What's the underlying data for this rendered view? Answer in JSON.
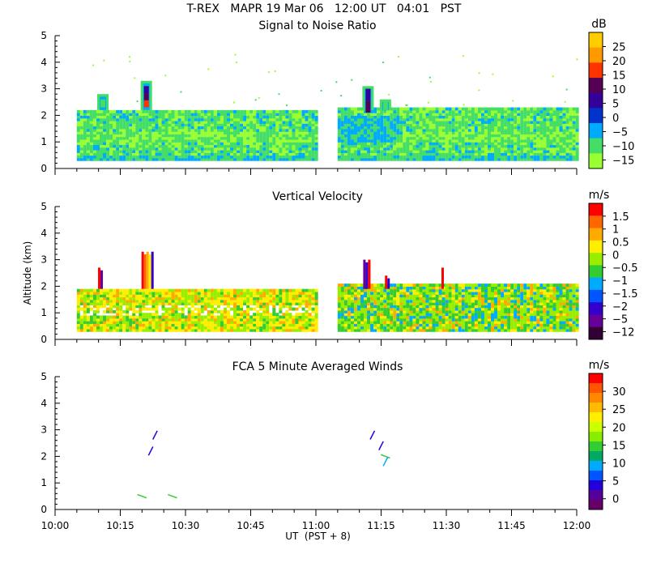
{
  "header": {
    "title": "T-REX   MAPR 19 Mar 06   12:00 UT   04:01   PST"
  },
  "x_axis": {
    "ticks": [
      "10:00",
      "10:15",
      "10:30",
      "10:45",
      "11:00",
      "11:15",
      "11:30",
      "11:45",
      "12:00"
    ],
    "label": "UT  (PST + 8)"
  },
  "y_axis": {
    "label": "Altitude (km)",
    "ticks": [
      "0",
      "1",
      "2",
      "3",
      "4",
      "5"
    ]
  },
  "panels": [
    {
      "title": "Signal to Noise Ratio",
      "unit": "dB",
      "colorbar": {
        "labels": [
          "25",
          "20",
          "15",
          "10",
          "5",
          "0",
          "−5",
          "−10",
          "−15"
        ],
        "colors": [
          "#ffcc00",
          "#ff9900",
          "#ff3300",
          "#550055",
          "#330099",
          "#0033cc",
          "#00aaff",
          "#44dd66",
          "#99ff33"
        ]
      }
    },
    {
      "title": "Vertical Velocity",
      "unit": "m/s",
      "colorbar": {
        "labels": [
          "1.5",
          "1",
          "0.5",
          "0",
          "−0.5",
          "−1",
          "−1.5",
          "−2",
          "−5",
          "−12"
        ],
        "colors": [
          "#ff0000",
          "#ff6600",
          "#ffaa00",
          "#ffee00",
          "#99ee00",
          "#33cc33",
          "#00aaff",
          "#0055ff",
          "#3300cc",
          "#660099",
          "#330033"
        ]
      }
    },
    {
      "title": "FCA 5 Minute Averaged Winds",
      "unit": "m/s",
      "colorbar": {
        "labels": [
          "30",
          "25",
          "20",
          "15",
          "10",
          "5",
          "0"
        ],
        "colors": [
          "#ff0000",
          "#ff5500",
          "#ff8800",
          "#ffbb00",
          "#ffee00",
          "#ccff00",
          "#88ee00",
          "#33cc33",
          "#00aa66",
          "#00aaff",
          "#0055ff",
          "#2200dd",
          "#550099",
          "#660066"
        ]
      }
    }
  ],
  "chart_data": [
    {
      "type": "heatmap",
      "title": "Signal to Noise Ratio",
      "units": "dB",
      "x_range": [
        "10:00",
        "12:00"
      ],
      "ylim": [
        0,
        5
      ],
      "data_gap": [
        "11:00",
        "11:05"
      ],
      "regions": [
        {
          "x": [
            "10:05",
            "11:00"
          ],
          "y": [
            0.3,
            2.2
          ],
          "value": -10
        },
        {
          "x": [
            "10:05",
            "11:00"
          ],
          "y": [
            0.9,
            1.4
          ],
          "value": -12
        },
        {
          "x": [
            "11:05",
            "12:00"
          ],
          "y": [
            0.3,
            2.3
          ],
          "value": -10
        },
        {
          "x": [
            "11:05",
            "11:20"
          ],
          "y": [
            0.9,
            2.0
          ],
          "value": -5
        },
        {
          "x": [
            "10:21",
            "10:23"
          ],
          "y": [
            2.2,
            3.3
          ],
          "value": 15
        },
        {
          "x": [
            "11:12",
            "11:13"
          ],
          "y": [
            2.2,
            3.0
          ],
          "value": 10
        }
      ]
    },
    {
      "type": "heatmap",
      "title": "Vertical Velocity",
      "units": "m/s",
      "x_range": [
        "10:00",
        "12:00"
      ],
      "ylim": [
        0,
        5
      ],
      "data_gap": [
        "11:00",
        "11:05"
      ],
      "regions": [
        {
          "x": [
            "10:05",
            "11:00"
          ],
          "y": [
            0.3,
            1.9
          ],
          "value": 0
        },
        {
          "x": [
            "11:05",
            "12:00"
          ],
          "y": [
            0.3,
            2.1
          ],
          "value": -0.5
        },
        {
          "x": [
            "10:21",
            "10:23"
          ],
          "y": [
            2.2,
            3.3
          ],
          "value": 1.5
        },
        {
          "x": [
            "11:12",
            "11:14"
          ],
          "y": [
            2.2,
            3.0
          ],
          "value": -2
        }
      ]
    },
    {
      "type": "scatter",
      "title": "FCA 5 Minute Averaged Winds",
      "units": "m/s",
      "x_range": [
        "10:00",
        "12:00"
      ],
      "ylim": [
        0,
        5
      ],
      "points": [
        {
          "x": "10:20",
          "y": 0.5,
          "speed": 15
        },
        {
          "x": "10:22",
          "y": 2.2,
          "speed": 5
        },
        {
          "x": "10:23",
          "y": 2.8,
          "speed": 5
        },
        {
          "x": "10:27",
          "y": 0.5,
          "speed": 15
        },
        {
          "x": "11:13",
          "y": 2.8,
          "speed": 5
        },
        {
          "x": "11:15",
          "y": 2.4,
          "speed": 5
        },
        {
          "x": "11:16",
          "y": 2.0,
          "speed": 15
        },
        {
          "x": "11:16",
          "y": 1.8,
          "speed": 10
        }
      ]
    }
  ]
}
